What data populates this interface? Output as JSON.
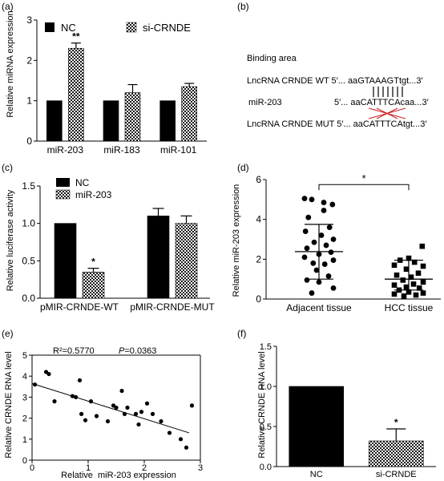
{
  "colors": {
    "black": "#000000",
    "check_dark": "#1a1a1a",
    "check_light": "#ffffff",
    "mismatch": "#cc2222"
  },
  "chart_data": [
    {
      "panel": "(a)",
      "type": "bar",
      "ylabel": "Relative miRNA expression",
      "ylim": [
        0,
        3
      ],
      "yticks": [
        "0",
        "1",
        "2",
        "3"
      ],
      "categories": [
        "miR-203",
        "miR-183",
        "miR-101"
      ],
      "series": [
        {
          "name": "NC",
          "pattern": "solid",
          "values": [
            1.0,
            1.0,
            1.0
          ],
          "errors": [
            0,
            0,
            0
          ]
        },
        {
          "name": "si-CRNDE",
          "pattern": "checker",
          "values": [
            2.3,
            1.2,
            1.35
          ],
          "errors": [
            0.13,
            0.2,
            0.08
          ]
        }
      ],
      "annotations": [
        {
          "text": "**",
          "category": 0,
          "series": 1
        }
      ]
    },
    {
      "panel": "(c)",
      "type": "bar",
      "ylabel": "Relative luciferase activity",
      "ylim": [
        0,
        1.5
      ],
      "yticks": [
        "0.0",
        "0.5",
        "1.0",
        "1.5"
      ],
      "categories": [
        "pMIR-CRNDE-WT",
        "pMIR-CRNDE-MUT"
      ],
      "series": [
        {
          "name": "NC",
          "pattern": "solid",
          "values": [
            1.0,
            1.1
          ],
          "errors": [
            0,
            0.1
          ]
        },
        {
          "name": "miR-203",
          "pattern": "checker",
          "values": [
            0.35,
            1.0
          ],
          "errors": [
            0.05,
            0.1
          ]
        }
      ],
      "annotations": [
        {
          "text": "*",
          "category": 0,
          "series": 1
        }
      ]
    },
    {
      "panel": "(d)",
      "type": "scatter",
      "ylabel": "Relative miR-203 expression",
      "ylim": [
        0,
        6
      ],
      "yticks": [
        "0",
        "2",
        "4",
        "6"
      ],
      "categories": [
        "Adjacent tissue",
        "HCC tissue"
      ],
      "groups": [
        {
          "marker": "circle",
          "mean": 2.38,
          "sd_low": 1.0,
          "sd_high": 3.75,
          "points": [
            [
              -0.3,
              5.05
            ],
            [
              -0.15,
              5.0
            ],
            [
              0.1,
              4.85
            ],
            [
              0.28,
              4.75
            ],
            [
              0.1,
              4.45
            ],
            [
              -0.22,
              4.1
            ],
            [
              0.22,
              3.6
            ],
            [
              -0.28,
              3.4
            ],
            [
              0.05,
              3.2
            ],
            [
              0.3,
              3.0
            ],
            [
              -0.1,
              2.85
            ],
            [
              0.15,
              2.7
            ],
            [
              -0.25,
              2.55
            ],
            [
              0.25,
              2.35
            ],
            [
              0.0,
              2.25
            ],
            [
              -0.3,
              2.1
            ],
            [
              0.3,
              1.95
            ],
            [
              -0.12,
              1.8
            ],
            [
              0.12,
              1.75
            ],
            [
              -0.05,
              1.45
            ],
            [
              0.2,
              1.15
            ],
            [
              -0.25,
              0.95
            ],
            [
              0.0,
              0.85
            ],
            [
              0.3,
              0.55
            ],
            [
              -0.15,
              0.3
            ]
          ]
        },
        {
          "marker": "square",
          "mean": 1.0,
          "sd_low": 0.45,
          "sd_high": 1.95,
          "points": [
            [
              0.28,
              2.65
            ],
            [
              0.0,
              2.05
            ],
            [
              -0.18,
              1.95
            ],
            [
              0.12,
              1.85
            ],
            [
              -0.3,
              1.7
            ],
            [
              0.3,
              1.65
            ],
            [
              -0.05,
              1.5
            ],
            [
              0.2,
              1.3
            ],
            [
              -0.25,
              1.2
            ],
            [
              0.05,
              1.1
            ],
            [
              -0.12,
              0.95
            ],
            [
              0.3,
              0.85
            ],
            [
              0.1,
              0.75
            ],
            [
              -0.3,
              0.7
            ],
            [
              -0.05,
              0.6
            ],
            [
              0.22,
              0.55
            ],
            [
              -0.2,
              0.45
            ],
            [
              0.0,
              0.35
            ],
            [
              0.3,
              0.3
            ],
            [
              -0.3,
              0.25
            ],
            [
              0.15,
              0.2
            ],
            [
              -0.1,
              0.15
            ]
          ]
        }
      ],
      "significance": "*"
    },
    {
      "panel": "(e)",
      "type": "scatter",
      "xlabel": "Relative  miR-203 expression",
      "ylabel": "Relative CRNDE RNA level",
      "xlim": [
        0,
        3
      ],
      "ylim": [
        0,
        5
      ],
      "xticks": [
        "0",
        "1",
        "2",
        "3"
      ],
      "yticks": [
        "0",
        "1",
        "2",
        "3",
        "4",
        "5"
      ],
      "stat_r2": "R²=0.5770",
      "stat_p_label": "P",
      "stat_p_value": "=0.0363",
      "points": [
        [
          0.05,
          3.6
        ],
        [
          0.25,
          4.2
        ],
        [
          0.3,
          4.1
        ],
        [
          0.4,
          2.8
        ],
        [
          0.72,
          3.05
        ],
        [
          0.78,
          3.0
        ],
        [
          0.85,
          3.8
        ],
        [
          0.88,
          2.2
        ],
        [
          0.95,
          1.9
        ],
        [
          1.05,
          2.8
        ],
        [
          1.15,
          2.1
        ],
        [
          1.35,
          1.85
        ],
        [
          1.45,
          2.6
        ],
        [
          1.5,
          2.5
        ],
        [
          1.6,
          3.3
        ],
        [
          1.65,
          2.2
        ],
        [
          1.7,
          2.5
        ],
        [
          1.85,
          2.2
        ],
        [
          1.9,
          1.7
        ],
        [
          1.95,
          2.3
        ],
        [
          2.05,
          2.7
        ],
        [
          2.15,
          2.2
        ],
        [
          2.3,
          1.85
        ],
        [
          2.45,
          1.3
        ],
        [
          2.65,
          1.0
        ],
        [
          2.75,
          0.6
        ],
        [
          2.85,
          2.6
        ]
      ],
      "fit_line": {
        "x": [
          0,
          2.8
        ],
        "y": [
          3.65,
          1.3
        ]
      }
    },
    {
      "panel": "(f)",
      "type": "bar",
      "ylabel": "Relative CRNDE RNA level",
      "ylim": [
        0,
        1.5
      ],
      "yticks": [
        "0.0",
        "0.5",
        "1.0",
        "1.5"
      ],
      "categories": [
        "NC",
        "si-CRNDE"
      ],
      "series": [
        {
          "pattern": "solid",
          "values": [
            1.0,
            null
          ],
          "errors": [
            0,
            0
          ]
        },
        {
          "pattern": "checker",
          "values": [
            null,
            0.32
          ],
          "errors": [
            0,
            0.15
          ]
        }
      ],
      "annotations": [
        {
          "text": "*",
          "category": 1,
          "series": 1
        }
      ]
    }
  ],
  "panel_b": {
    "label": "(b)",
    "title": "Binding area",
    "rows": [
      {
        "name": "LncRNA CRNDE WT 5′",
        "dots": "... aa",
        "core": "GTAAAGT",
        "tail": "tgt...3′"
      },
      {
        "name": "miR-203",
        "dots": "5′... aa",
        "core": "CATTTCA",
        "tail": "caa...3′"
      },
      {
        "name": "LncRNA CRNDE MUT 5′",
        "dots": "... aa",
        "core": "CATTTCA",
        "tail": "tgt...3′"
      }
    ]
  }
}
